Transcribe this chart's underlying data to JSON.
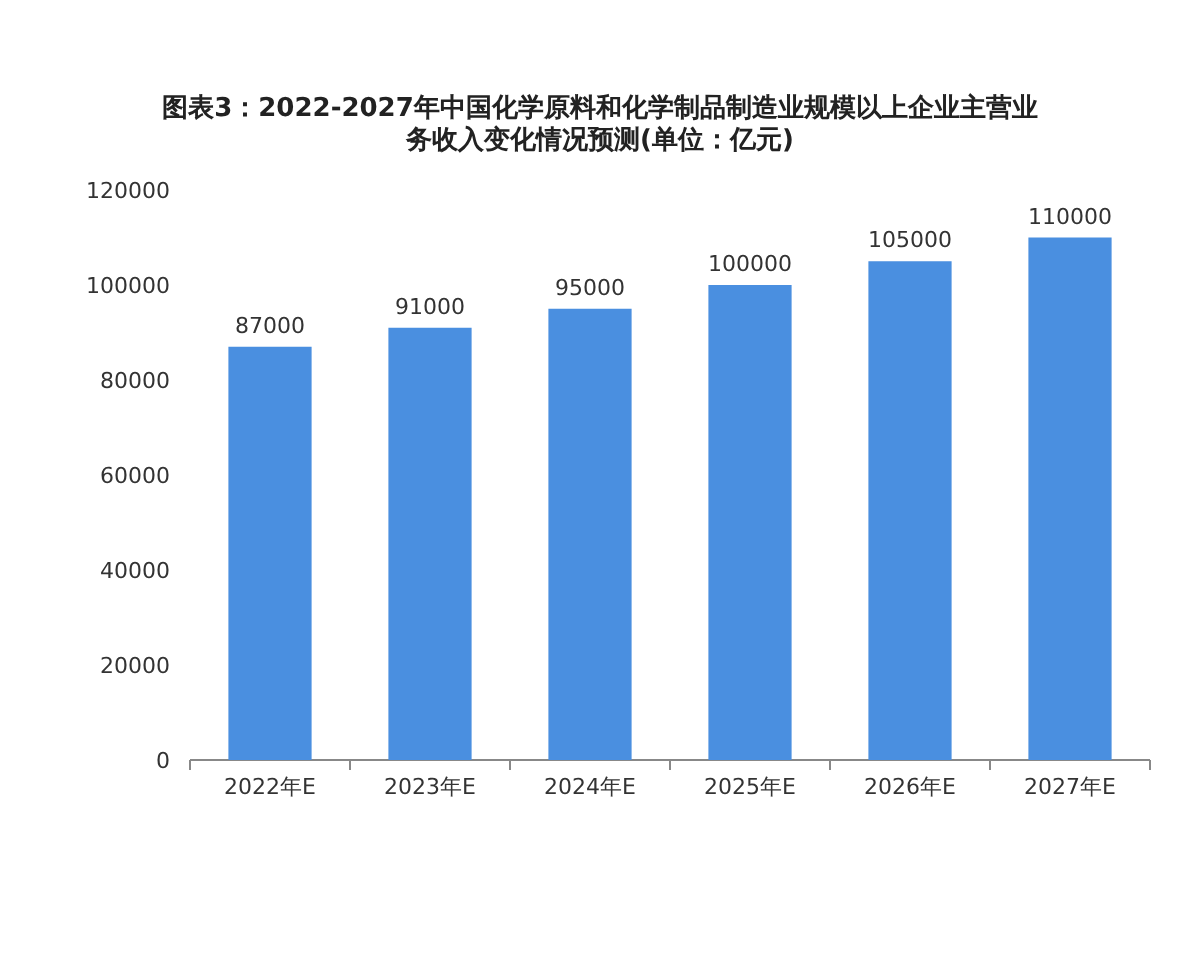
{
  "chart_data": {
    "type": "bar",
    "title": "图表3：2022-2027年中国化学原料和化学制品制造业规模以上企业主营业务收入变化情况预测(单位：亿元)",
    "categories": [
      "2022年E",
      "2023年E",
      "2024年E",
      "2025年E",
      "2026年E",
      "2027年E"
    ],
    "values": [
      87000,
      91000,
      95000,
      100000,
      105000,
      110000
    ],
    "color": "#4a8fe0",
    "ylim": [
      0,
      120000
    ],
    "yticks": [
      0,
      20000,
      40000,
      60000,
      80000,
      100000,
      120000
    ],
    "data_labels": true
  }
}
